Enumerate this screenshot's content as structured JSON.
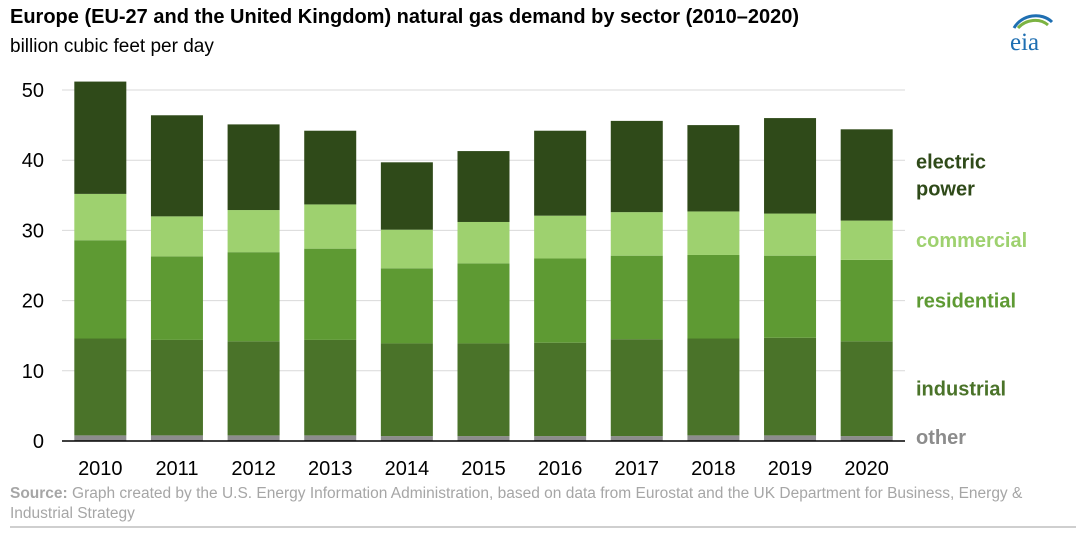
{
  "header": {
    "title": "Europe (EU-27 and the United Kingdom) natural gas demand by sector (2010–2020)",
    "subtitle": "billion cubic feet per day",
    "logo_text": "eia"
  },
  "source": {
    "label": "Source:",
    "text": "Graph created by the U.S. Energy Information Administration, based on data from Eurostat and the UK Department for Business, Energy & Industrial Strategy"
  },
  "colors": {
    "other": "#8c8c8c",
    "industrial": "#4a7329",
    "residential": "#5e9a33",
    "commercial": "#9ed16f",
    "electric_power": "#2f4a19",
    "grid": "#d9d9d9",
    "axis": "#000000"
  },
  "chart_data": {
    "type": "bar",
    "stacked": true,
    "categories": [
      "2010",
      "2011",
      "2012",
      "2013",
      "2014",
      "2015",
      "2016",
      "2017",
      "2018",
      "2019",
      "2020"
    ],
    "ylim": [
      0,
      50
    ],
    "yticks": [
      0,
      10,
      20,
      30,
      40,
      50
    ],
    "grid": true,
    "legend_placement": "right",
    "series": [
      {
        "name": "other",
        "key": "other",
        "values": [
          0.8,
          0.8,
          0.8,
          0.8,
          0.7,
          0.7,
          0.7,
          0.7,
          0.8,
          0.8,
          0.7
        ]
      },
      {
        "name": "industrial",
        "key": "industrial",
        "values": [
          13.8,
          13.6,
          13.4,
          13.6,
          13.2,
          13.2,
          13.3,
          13.8,
          13.8,
          13.9,
          13.5
        ]
      },
      {
        "name": "residential",
        "key": "residential",
        "values": [
          14.0,
          11.9,
          12.7,
          13.0,
          10.7,
          11.4,
          12.0,
          11.9,
          11.9,
          11.7,
          11.6
        ]
      },
      {
        "name": "commercial",
        "key": "commercial",
        "values": [
          6.6,
          5.7,
          6.0,
          6.3,
          5.5,
          5.9,
          6.1,
          6.2,
          6.2,
          6.0,
          5.6
        ]
      },
      {
        "name": "electric\npower",
        "key": "electric_power",
        "values": [
          16.0,
          14.4,
          12.2,
          10.5,
          9.6,
          10.1,
          12.1,
          13.0,
          12.3,
          13.6,
          13.0
        ]
      }
    ]
  }
}
